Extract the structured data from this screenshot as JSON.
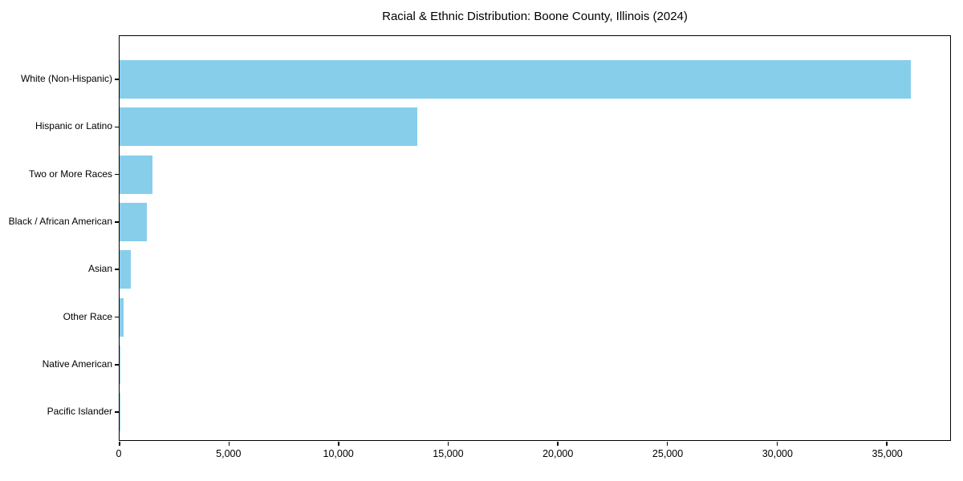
{
  "title": "Racial & Ethnic Distribution: Boone County, Illinois (2024)",
  "chart_data": {
    "type": "bar",
    "orientation": "horizontal",
    "title": "Racial & Ethnic Distribution: Boone County, Illinois (2024)",
    "categories": [
      "White (Non-Hispanic)",
      "Hispanic or Latino",
      "Two or More Races",
      "Black / African American",
      "Asian",
      "Other Race",
      "Native American",
      "Pacific Islander"
    ],
    "values": [
      36100,
      13600,
      1500,
      1250,
      500,
      200,
      40,
      10
    ],
    "xlabel": "",
    "ylabel": "",
    "xlim": [
      0,
      37900
    ],
    "x_ticks": [
      0,
      5000,
      10000,
      15000,
      20000,
      25000,
      30000,
      35000
    ],
    "x_tick_labels": [
      "0",
      "5,000",
      "10,000",
      "15,000",
      "20,000",
      "25,000",
      "30,000",
      "35,000"
    ],
    "bar_color": "#87CEEB",
    "axis_color": "#000000",
    "text_color": "#000000",
    "background": "#FFFFFF",
    "grid": false,
    "legend": null
  }
}
